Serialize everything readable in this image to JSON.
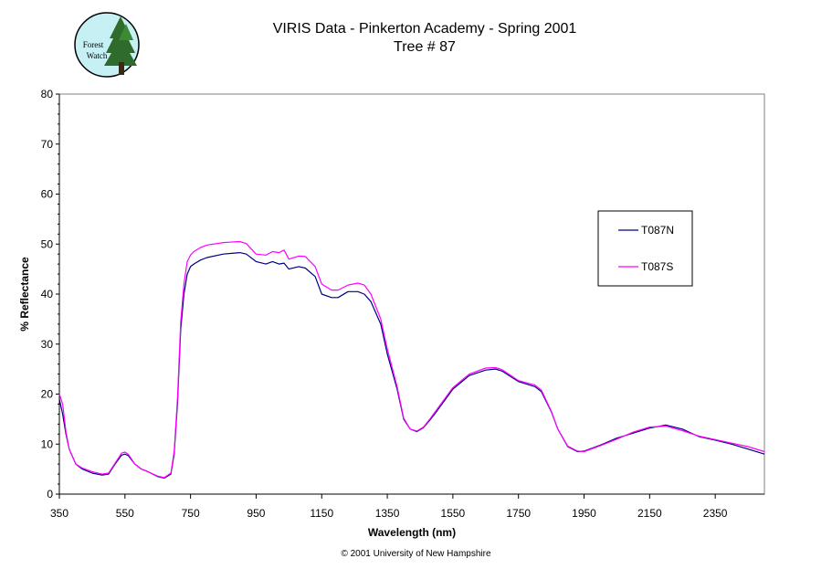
{
  "logo": {
    "text_line1": "Forest",
    "text_line2": "Watch",
    "icon": "forest-watch-logo"
  },
  "copyright": "© 2001 University of New Hampshire",
  "chart_data": {
    "type": "line",
    "title": "VIRIS Data - Pinkerton Academy - Spring 2001",
    "subtitle": "Tree # 87",
    "xlabel": "Wavelength (nm)",
    "ylabel": "% Reflectance",
    "xlim": [
      350,
      2500
    ],
    "ylim": [
      0,
      80
    ],
    "xticks": [
      350,
      550,
      750,
      950,
      1150,
      1350,
      1550,
      1750,
      1950,
      2150,
      2350
    ],
    "yticks": [
      0,
      10,
      20,
      30,
      40,
      50,
      60,
      70,
      80
    ],
    "grid": false,
    "legend_position": "right",
    "series": [
      {
        "name": "T087N",
        "color": "#000080",
        "x": [
          350,
          360,
          370,
          380,
          400,
          420,
          450,
          480,
          500,
          520,
          540,
          550,
          560,
          580,
          600,
          620,
          650,
          670,
          690,
          700,
          710,
          720,
          730,
          740,
          750,
          760,
          780,
          800,
          850,
          900,
          920,
          950,
          980,
          1000,
          1020,
          1035,
          1050,
          1080,
          1100,
          1130,
          1150,
          1180,
          1200,
          1230,
          1260,
          1280,
          1300,
          1330,
          1350,
          1380,
          1400,
          1420,
          1440,
          1460,
          1480,
          1500,
          1550,
          1600,
          1650,
          1680,
          1700,
          1750,
          1800,
          1820,
          1850,
          1870,
          1900,
          1930,
          1950,
          2000,
          2050,
          2100,
          2150,
          2200,
          2250,
          2300,
          2350,
          2400,
          2450,
          2500
        ],
        "y": [
          19,
          16,
          12,
          9,
          6,
          5,
          4.2,
          3.8,
          4,
          6,
          7.8,
          8,
          7.7,
          6,
          5,
          4.5,
          3.5,
          3.2,
          4,
          8,
          18,
          33,
          40,
          44,
          45.5,
          46,
          46.8,
          47.3,
          48,
          48.3,
          48,
          46.5,
          46,
          46.5,
          46,
          46.2,
          45,
          45.5,
          45.2,
          43.5,
          40,
          39.3,
          39.3,
          40.5,
          40.5,
          40,
          38.5,
          34,
          28,
          21,
          15,
          13,
          12.5,
          13.3,
          14.8,
          16.5,
          21,
          23.7,
          24.8,
          25,
          24.6,
          22.5,
          21.5,
          20.5,
          16.5,
          13,
          9.5,
          8.5,
          8.6,
          9.8,
          11.2,
          12.2,
          13.2,
          13.8,
          13,
          11.5,
          10.8,
          10,
          9,
          8
        ]
      },
      {
        "name": "T087S",
        "color": "#ff00ff",
        "x": [
          350,
          360,
          370,
          380,
          400,
          420,
          450,
          480,
          500,
          520,
          540,
          550,
          560,
          580,
          600,
          620,
          650,
          670,
          690,
          700,
          710,
          720,
          730,
          740,
          750,
          760,
          780,
          800,
          850,
          900,
          920,
          950,
          980,
          1000,
          1020,
          1035,
          1050,
          1080,
          1100,
          1130,
          1150,
          1180,
          1200,
          1230,
          1260,
          1280,
          1300,
          1330,
          1350,
          1380,
          1400,
          1420,
          1440,
          1460,
          1480,
          1500,
          1550,
          1600,
          1650,
          1680,
          1700,
          1750,
          1800,
          1820,
          1850,
          1870,
          1900,
          1930,
          1950,
          2000,
          2050,
          2100,
          2150,
          2200,
          2250,
          2300,
          2350,
          2400,
          2450,
          2500
        ],
        "y": [
          20,
          18,
          12.5,
          9,
          6,
          5.2,
          4.5,
          4,
          4.2,
          6.2,
          8.2,
          8.4,
          8,
          6,
          5,
          4.5,
          3.6,
          3.3,
          4.2,
          8.5,
          19,
          34.5,
          42,
          46.5,
          47.8,
          48.5,
          49.3,
          49.8,
          50.3,
          50.5,
          50.1,
          48,
          47.8,
          48.5,
          48.3,
          48.8,
          47,
          47.6,
          47.5,
          45.5,
          42,
          40.8,
          40.8,
          41.8,
          42.2,
          41.8,
          40,
          35,
          29,
          21.5,
          15.2,
          13,
          12.6,
          13.4,
          15,
          16.8,
          21.3,
          24,
          25.2,
          25.3,
          24.9,
          22.7,
          21.8,
          20.8,
          16.6,
          13,
          9.6,
          8.6,
          8.5,
          9.7,
          11,
          12.4,
          13.4,
          13.6,
          12.7,
          11.6,
          10.9,
          10.2,
          9.5,
          8.5
        ]
      }
    ]
  }
}
